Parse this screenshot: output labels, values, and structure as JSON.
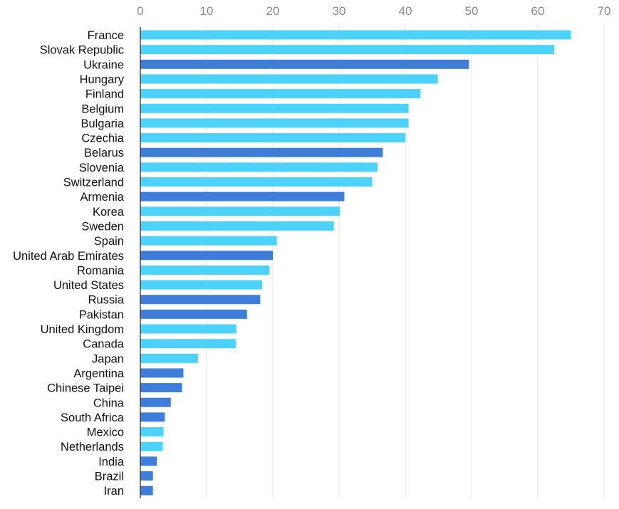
{
  "chart_data": {
    "type": "bar",
    "orientation": "horizontal",
    "title": "",
    "xlabel": "",
    "ylabel": "",
    "xlim": [
      0,
      70
    ],
    "x_ticks": [
      0,
      10,
      20,
      30,
      40,
      50,
      60,
      70
    ],
    "x_axis_position": "top",
    "grid": true,
    "legend": "none",
    "colors": {
      "light": "#4dd2fb",
      "dark": "#3f7ddb"
    },
    "categories": [
      "France",
      "Slovak Republic",
      "Ukraine",
      "Hungary",
      "Finland",
      "Belgium",
      "Bulgaria",
      "Czechia",
      "Belarus",
      "Slovenia",
      "Switzerland",
      "Armenia",
      "Korea",
      "Sweden",
      "Spain",
      "United Arab Emirates",
      "Romania",
      "United States",
      "Russia",
      "Pakistan",
      "United Kingdom",
      "Canada",
      "Japan",
      "Argentina",
      "Chinese Taipei",
      "China",
      "South Africa",
      "Mexico",
      "Netherlands",
      "India",
      "Brazil",
      "Iran"
    ],
    "values": [
      65.0,
      62.5,
      49.6,
      44.9,
      42.3,
      40.5,
      40.5,
      40.0,
      36.6,
      35.8,
      35.0,
      30.8,
      30.1,
      29.2,
      20.6,
      20.0,
      19.5,
      18.4,
      18.1,
      16.1,
      14.5,
      14.4,
      8.7,
      6.5,
      6.3,
      4.6,
      3.7,
      3.5,
      3.4,
      2.5,
      1.9,
      1.9
    ],
    "bar_color_keys": [
      "light",
      "light",
      "dark",
      "light",
      "light",
      "light",
      "light",
      "light",
      "dark",
      "light",
      "light",
      "dark",
      "light",
      "light",
      "light",
      "dark",
      "light",
      "light",
      "dark",
      "dark",
      "light",
      "light",
      "light",
      "dark",
      "dark",
      "dark",
      "dark",
      "light",
      "light",
      "dark",
      "dark",
      "dark"
    ]
  }
}
